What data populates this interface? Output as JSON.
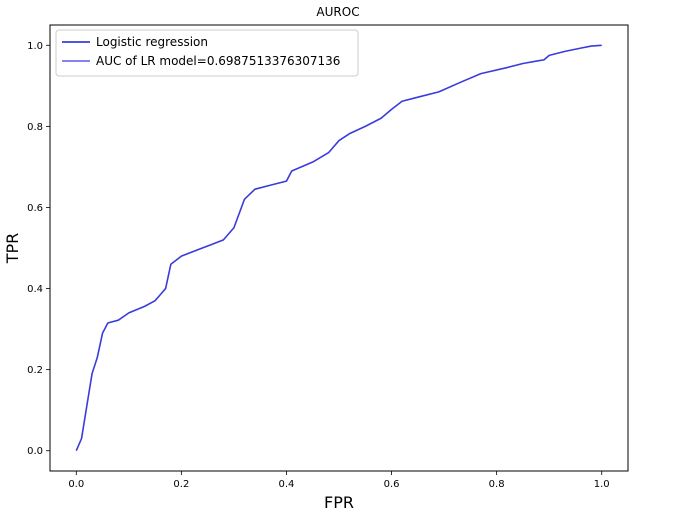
{
  "chart_data": {
    "type": "line",
    "title": "AUROC",
    "xlabel": "FPR",
    "ylabel": "TPR",
    "xlim": [
      -0.05,
      1.05
    ],
    "ylim": [
      -0.05,
      1.05
    ],
    "xticks": [
      0.0,
      0.2,
      0.4,
      0.6,
      0.8,
      1.0
    ],
    "yticks": [
      0.0,
      0.2,
      0.4,
      0.6,
      0.8,
      1.0
    ],
    "xtick_labels": [
      "0.0",
      "0.2",
      "0.4",
      "0.6",
      "0.8",
      "1.0"
    ],
    "ytick_labels": [
      "0.0",
      "0.2",
      "0.4",
      "0.6",
      "0.8",
      "1.0"
    ],
    "grid": false,
    "legend_position": "top-left",
    "legend_entries": [
      "Logistic regression",
      "AUC of LR model=0.6987513376307136"
    ],
    "line_color": "#3b3bdd",
    "series": [
      {
        "name": "Logistic regression",
        "x": [
          0.0,
          0.01,
          0.02,
          0.03,
          0.04,
          0.05,
          0.06,
          0.08,
          0.1,
          0.13,
          0.15,
          0.16,
          0.17,
          0.18,
          0.2,
          0.23,
          0.26,
          0.28,
          0.3,
          0.32,
          0.34,
          0.37,
          0.4,
          0.41,
          0.45,
          0.48,
          0.5,
          0.52,
          0.55,
          0.58,
          0.6,
          0.62,
          0.65,
          0.69,
          0.73,
          0.77,
          0.82,
          0.85,
          0.88,
          0.89,
          0.9,
          0.93,
          0.96,
          0.98,
          1.0
        ],
        "y": [
          0.0,
          0.03,
          0.11,
          0.19,
          0.23,
          0.29,
          0.315,
          0.322,
          0.34,
          0.356,
          0.37,
          0.385,
          0.4,
          0.46,
          0.48,
          0.495,
          0.51,
          0.52,
          0.55,
          0.62,
          0.645,
          0.655,
          0.665,
          0.69,
          0.712,
          0.735,
          0.765,
          0.782,
          0.8,
          0.82,
          0.842,
          0.862,
          0.872,
          0.885,
          0.908,
          0.93,
          0.945,
          0.955,
          0.962,
          0.964,
          0.975,
          0.985,
          0.993,
          0.998,
          1.0
        ]
      }
    ]
  }
}
